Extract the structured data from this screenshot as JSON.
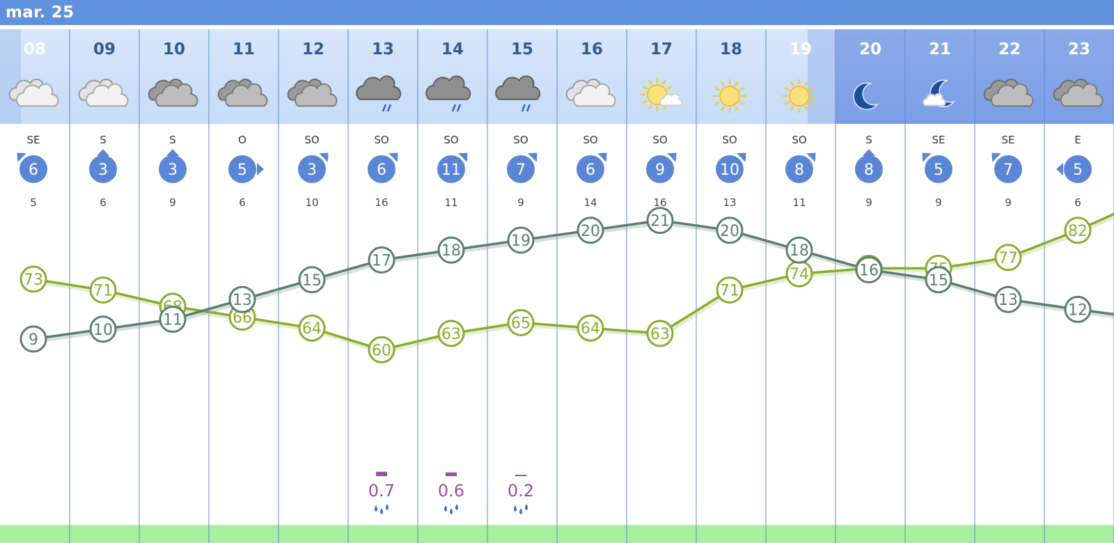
{
  "header": {
    "date_label": "mar. 25"
  },
  "colors": {
    "header_bar": "#5f91dc",
    "day_cell": "#c7dcf7",
    "night_cell": "#7c9ee6",
    "column_line": "#5a8ad0",
    "wind_bubble": "#5b86d6",
    "temperature_line": "#5a7e70",
    "humidity_line": "#8aac2c",
    "rain": "#9a4ea5",
    "ground_strip": "#a6f0a0"
  },
  "chart_data": {
    "type": "line",
    "x": [
      "08",
      "09",
      "10",
      "11",
      "12",
      "13",
      "14",
      "15",
      "16",
      "17",
      "18",
      "19",
      "20",
      "21",
      "22",
      "23"
    ],
    "series": [
      {
        "key": "temperature",
        "values": [
          9,
          10,
          11,
          13,
          15,
          17,
          18,
          19,
          20,
          21,
          20,
          18,
          16,
          15,
          13,
          12
        ]
      },
      {
        "key": "humidity",
        "values": [
          73,
          71,
          68,
          66,
          64,
          60,
          63,
          65,
          64,
          63,
          71,
          74,
          75,
          75,
          77,
          82
        ]
      }
    ],
    "sky": [
      "cloud-light",
      "cloud-light",
      "cloud-dark",
      "cloud-dark",
      "cloud-dark",
      "cloud-rain",
      "cloud-rain",
      "cloud-rain",
      "cloud-light",
      "sun-cloud",
      "sun",
      "sun",
      "moon",
      "moon-cloud",
      "cloud-dark",
      "cloud-dark"
    ],
    "night": [
      false,
      false,
      false,
      false,
      false,
      false,
      false,
      false,
      false,
      false,
      false,
      false,
      true,
      true,
      true,
      true
    ],
    "wind_dir": [
      "SE",
      "S",
      "S",
      "O",
      "SO",
      "SO",
      "SO",
      "SO",
      "SO",
      "SO",
      "SO",
      "SO",
      "S",
      "SE",
      "SE",
      "E"
    ],
    "wind_speed": [
      "6",
      "3",
      "3",
      "5",
      "3",
      "6",
      "11",
      "7",
      "6",
      "9",
      "10",
      "8",
      "8",
      "5",
      "7",
      "5"
    ],
    "gust": [
      "5",
      "6",
      "9",
      "6",
      "10",
      "16",
      "11",
      "9",
      "14",
      "16",
      "13",
      "11",
      "9",
      "9",
      "9",
      "6"
    ],
    "rain": [
      "",
      "",
      "",
      "",
      "",
      "0.7",
      "0.6",
      "0.2",
      "",
      "",
      "",
      "",
      "",
      "",
      "",
      ""
    ],
    "grid": true,
    "legend": "none"
  }
}
